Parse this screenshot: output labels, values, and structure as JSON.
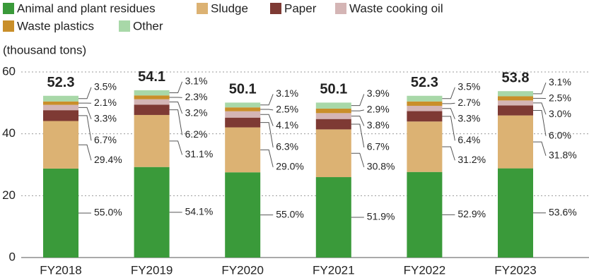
{
  "chart_data": {
    "type": "stacked_bar_percent",
    "ylabel": "(thousand tons)",
    "categories": [
      "FY2018",
      "FY2019",
      "FY2020",
      "FY2021",
      "FY2022",
      "FY2023"
    ],
    "totals": [
      52.3,
      54.1,
      50.1,
      50.1,
      52.3,
      53.8
    ],
    "series": [
      {
        "name": "Animal and plant residues",
        "color": "#3a9a3a",
        "values": [
          55.0,
          54.1,
          55.0,
          51.9,
          52.9,
          53.6
        ],
        "value_labels": [
          "55.0%",
          "54.1%",
          "55.0%",
          "51.9%",
          "52.9%",
          "53.6%"
        ]
      },
      {
        "name": "Sludge",
        "color": "#dcb273",
        "values": [
          29.4,
          31.1,
          29.0,
          30.8,
          31.2,
          31.8
        ],
        "value_labels": [
          "29.4%",
          "31.1%",
          "29.0%",
          "30.8%",
          "31.2%",
          "31.8%"
        ]
      },
      {
        "name": "Paper",
        "color": "#7e3a34",
        "values": [
          6.7,
          6.2,
          6.3,
          6.7,
          6.4,
          6.0
        ],
        "value_labels": [
          "6.7%",
          "6.2%",
          "6.3%",
          "6.7%",
          "6.4%",
          "6.0%"
        ]
      },
      {
        "name": "Waste cooking oil",
        "color": "#d4b5b5",
        "values": [
          3.3,
          3.2,
          4.1,
          3.8,
          3.3,
          3.0
        ],
        "value_labels": [
          "3.3%",
          "3.2%",
          "4.1%",
          "3.8%",
          "3.3%",
          "3.0%"
        ]
      },
      {
        "name": "Waste plastics",
        "color": "#c98f2a",
        "values": [
          2.1,
          2.3,
          2.5,
          2.9,
          2.7,
          2.5
        ],
        "value_labels": [
          "2.1%",
          "2.3%",
          "2.5%",
          "2.9%",
          "2.7%",
          "2.5%"
        ]
      },
      {
        "name": "Other",
        "color": "#a8d8a8",
        "values": [
          3.5,
          3.1,
          3.1,
          3.9,
          3.5,
          3.1
        ],
        "value_labels": [
          "3.5%",
          "3.1%",
          "3.1%",
          "3.9%",
          "3.5%",
          "3.1%"
        ]
      }
    ],
    "ylim": [
      0,
      60
    ],
    "yticks": [
      0,
      20,
      40,
      60
    ],
    "grid": true
  }
}
